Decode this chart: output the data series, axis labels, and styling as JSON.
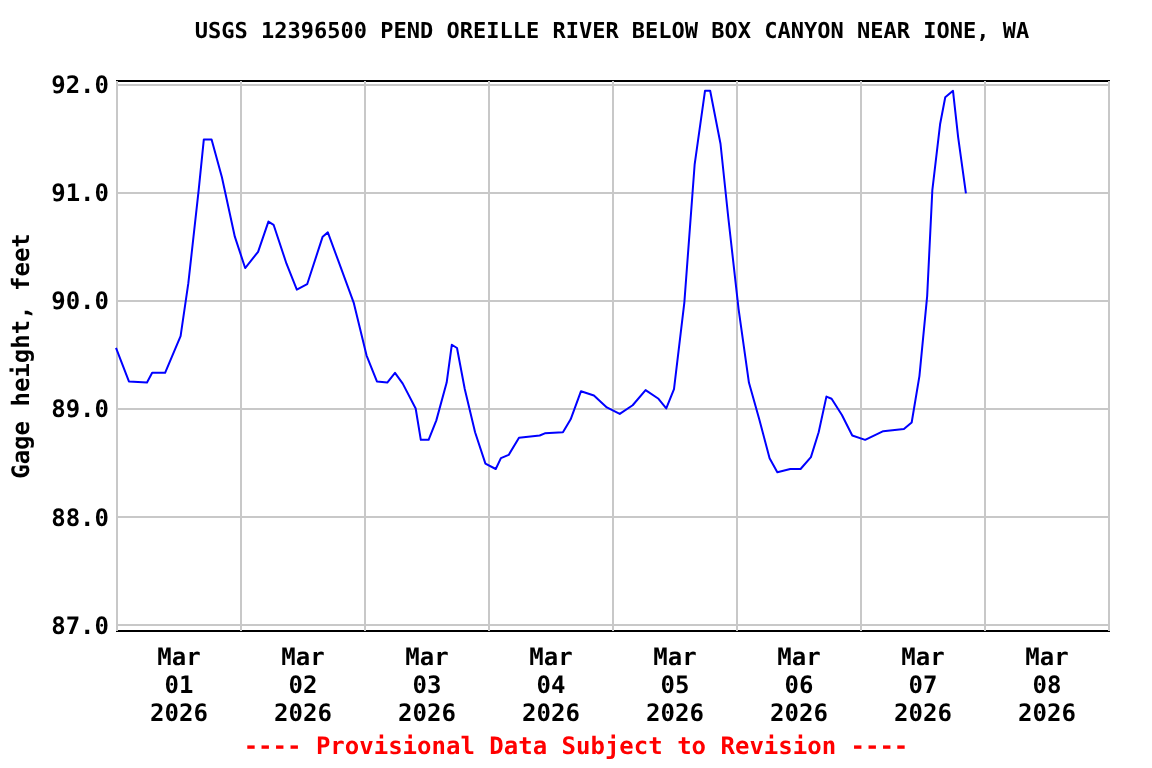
{
  "chart_data": {
    "type": "line",
    "title": "USGS 12396500 PEND OREILLE RIVER BELOW BOX CANYON NEAR IONE, WA",
    "ylabel": "Gage height, feet",
    "annotations": [
      "---- Provisional Data Subject to Revision ----"
    ],
    "x": [
      "2026-03-01T00:00",
      "2026-03-01T02:30",
      "2026-03-01T06:00",
      "2026-03-01T07:00",
      "2026-03-01T09:30",
      "2026-03-01T12:30",
      "2026-03-01T14:00",
      "2026-03-01T16:00",
      "2026-03-01T17:00",
      "2026-03-01T18:30",
      "2026-03-01T20:30",
      "2026-03-01T23:00",
      "2026-03-02T01:00",
      "2026-03-02T03:30",
      "2026-03-02T05:30",
      "2026-03-02T06:30",
      "2026-03-02T09:00",
      "2026-03-02T11:00",
      "2026-03-02T13:00",
      "2026-03-02T16:00",
      "2026-03-02T17:00",
      "2026-03-02T19:00",
      "2026-03-02T22:00",
      "2026-03-03T00:30",
      "2026-03-03T02:30",
      "2026-03-03T04:30",
      "2026-03-03T06:00",
      "2026-03-03T07:30",
      "2026-03-03T10:00",
      "2026-03-03T11:00",
      "2026-03-03T12:30",
      "2026-03-03T14:00",
      "2026-03-03T16:00",
      "2026-03-03T17:00",
      "2026-03-03T18:00",
      "2026-03-03T19:30",
      "2026-03-03T21:30",
      "2026-03-03T23:30",
      "2026-03-04T01:30",
      "2026-03-04T02:30",
      "2026-03-04T04:00",
      "2026-03-04T06:00",
      "2026-03-04T10:00",
      "2026-03-04T11:00",
      "2026-03-04T14:30",
      "2026-03-04T16:00",
      "2026-03-04T18:00",
      "2026-03-04T20:30",
      "2026-03-04T23:00",
      "2026-03-05T01:30",
      "2026-03-05T04:00",
      "2026-03-05T06:30",
      "2026-03-05T09:00",
      "2026-03-05T10:30",
      "2026-03-05T12:00",
      "2026-03-05T14:00",
      "2026-03-05T16:00",
      "2026-03-05T18:00",
      "2026-03-05T19:00",
      "2026-03-05T21:00",
      "2026-03-05T22:30",
      "2026-03-06T00:30",
      "2026-03-06T02:30",
      "2026-03-06T04:30",
      "2026-03-06T06:30",
      "2026-03-06T08:00",
      "2026-03-06T10:30",
      "2026-03-06T12:30",
      "2026-03-06T14:30",
      "2026-03-06T16:00",
      "2026-03-06T17:30",
      "2026-03-06T18:30",
      "2026-03-06T20:30",
      "2026-03-06T22:30",
      "2026-03-07T01:00",
      "2026-03-07T04:30",
      "2026-03-07T08:30",
      "2026-03-07T10:00",
      "2026-03-07T11:30",
      "2026-03-07T13:00",
      "2026-03-07T14:00",
      "2026-03-07T15:30",
      "2026-03-07T16:30",
      "2026-03-07T18:00",
      "2026-03-07T19:00",
      "2026-03-07T20:30"
    ],
    "series": [
      {
        "color": "#0000ff",
        "values": [
          89.56,
          89.25,
          89.24,
          89.33,
          89.33,
          89.67,
          90.16,
          91.02,
          91.49,
          91.49,
          91.14,
          90.59,
          90.3,
          90.45,
          90.73,
          90.7,
          90.34,
          90.1,
          90.15,
          90.59,
          90.63,
          90.37,
          89.98,
          89.49,
          89.25,
          89.24,
          89.33,
          89.23,
          89.0,
          88.71,
          88.71,
          88.89,
          89.24,
          89.59,
          89.56,
          89.18,
          88.78,
          88.49,
          88.44,
          88.54,
          88.57,
          88.73,
          88.75,
          88.77,
          88.78,
          88.9,
          89.16,
          89.12,
          89.01,
          88.95,
          89.03,
          89.17,
          89.09,
          89.0,
          89.18,
          89.98,
          91.26,
          91.94,
          91.94,
          91.45,
          90.77,
          89.92,
          89.24,
          88.9,
          88.54,
          88.41,
          88.44,
          88.44,
          88.55,
          88.78,
          89.11,
          89.09,
          88.94,
          88.75,
          88.71,
          88.79,
          88.81,
          88.87,
          89.3,
          90.04,
          91.02,
          91.63,
          91.88,
          91.94,
          91.51,
          90.99
        ]
      }
    ],
    "xlim": [
      "2026-03-01T00:00",
      "2026-03-09T00:00"
    ],
    "xticks": [
      {
        "value": "2026-03-01T00:00",
        "label": null
      },
      {
        "value": "2026-03-01T12:00",
        "label": "Mar 01 2026"
      },
      {
        "value": "2026-03-02T00:00",
        "label": null
      },
      {
        "value": "2026-03-02T12:00",
        "label": "Mar 02 2026"
      },
      {
        "value": "2026-03-03T00:00",
        "label": null
      },
      {
        "value": "2026-03-03T12:00",
        "label": "Mar 03 2026"
      },
      {
        "value": "2026-03-04T00:00",
        "label": null
      },
      {
        "value": "2026-03-04T12:00",
        "label": "Mar 04 2026"
      },
      {
        "value": "2026-03-05T00:00",
        "label": null
      },
      {
        "value": "2026-03-05T12:00",
        "label": "Mar 05 2026"
      },
      {
        "value": "2026-03-06T00:00",
        "label": null
      },
      {
        "value": "2026-03-06T12:00",
        "label": "Mar 06 2026"
      },
      {
        "value": "2026-03-07T00:00",
        "label": null
      },
      {
        "value": "2026-03-07T12:00",
        "label": "Mar 07 2026"
      },
      {
        "value": "2026-03-08T00:00",
        "label": null
      },
      {
        "value": "2026-03-08T12:00",
        "label": "Mar 08 2026"
      },
      {
        "value": "2026-03-09T00:00",
        "label": null
      }
    ],
    "ylim": [
      86.95,
      92.04
    ],
    "yticks": [
      {
        "value": 87,
        "label": "87.0"
      },
      {
        "value": 88,
        "label": "88.0"
      },
      {
        "value": 89,
        "label": "89.0"
      },
      {
        "value": 90,
        "label": "90.0"
      },
      {
        "value": 91,
        "label": "91.0"
      },
      {
        "value": 92,
        "label": "92.0"
      }
    ],
    "grid": true,
    "marker": "none",
    "line_style": "solid"
  }
}
